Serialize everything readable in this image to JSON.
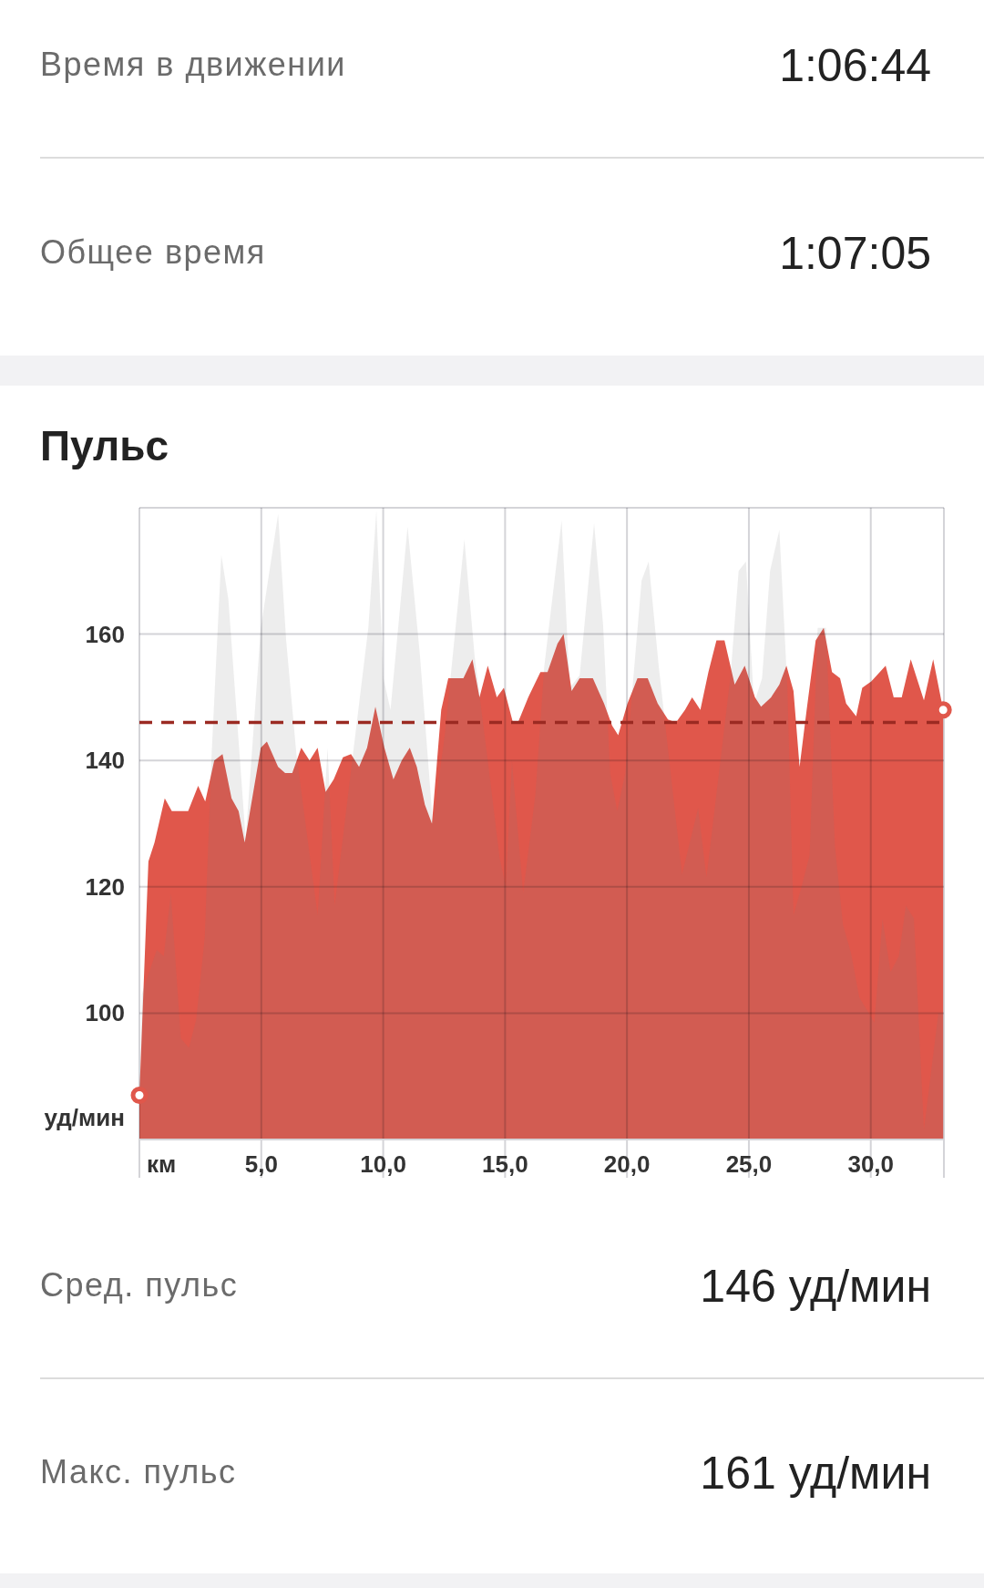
{
  "chart_data": {
    "type": "area",
    "title": "Пульс",
    "xlim": [
      0,
      33
    ],
    "ylim": [
      80,
      180
    ],
    "xlabel": "км",
    "ylabel": "уд/мин",
    "xticks": [
      {
        "value": 0,
        "label": null
      },
      {
        "value": 5,
        "label": "5,0"
      },
      {
        "value": 10,
        "label": "10,0"
      },
      {
        "value": 15,
        "label": "15,0"
      },
      {
        "value": 20,
        "label": "20,0"
      },
      {
        "value": 25,
        "label": "25,0"
      },
      {
        "value": 30,
        "label": "30,0"
      }
    ],
    "yticks": [
      {
        "value": 80,
        "label": null
      },
      100,
      120,
      140,
      160,
      {
        "value": 180,
        "label": null
      }
    ],
    "grid": true,
    "marker": "none",
    "series": [
      {
        "color": "#e0574b",
        "x": [
          0,
          0.37,
          0.62,
          1.04,
          1.33,
          2.0,
          2.41,
          2.7,
          3.07,
          3.41,
          3.78,
          4.07,
          4.32,
          4.98,
          5.23,
          5.69,
          5.98,
          6.27,
          6.64,
          6.98,
          7.31,
          7.64,
          7.97,
          8.35,
          8.68,
          9.01,
          9.34,
          9.68,
          10.05,
          10.42,
          10.76,
          11.09,
          11.38,
          11.71,
          12.0,
          12.38,
          12.67,
          13.04,
          13.29,
          13.66,
          13.95,
          14.29,
          14.66,
          14.95,
          15.32,
          15.53,
          15.95,
          16.45,
          16.74,
          17.15,
          17.4,
          17.73,
          18.06,
          18.6,
          19.06,
          19.39,
          19.64,
          20.02,
          20.43,
          20.85,
          21.26,
          21.68,
          22.01,
          22.38,
          22.67,
          23.01,
          23.34,
          23.67,
          24.0,
          24.42,
          24.83,
          25.25,
          25.5,
          25.91,
          26.25,
          26.54,
          26.83,
          27.08,
          27.37,
          27.74,
          28.07,
          28.41,
          28.74,
          28.99,
          29.4,
          29.65,
          30.02,
          30.61,
          30.94,
          31.27,
          31.64,
          32.18,
          32.56,
          32.97
        ],
        "values": [
          87,
          124,
          127,
          134,
          132,
          132,
          136,
          133.5,
          140,
          141,
          134,
          132,
          127,
          142,
          143,
          139,
          138,
          138,
          142,
          140,
          142,
          135,
          137,
          140.5,
          141,
          139,
          142,
          148.5,
          142,
          137,
          140,
          142,
          139,
          133,
          130,
          148,
          153,
          153,
          153,
          156,
          150,
          155,
          150,
          151.5,
          146,
          146,
          150,
          154,
          154,
          158.5,
          160,
          151,
          153,
          153,
          149,
          145.5,
          144,
          149,
          153,
          153,
          149,
          146.5,
          146,
          148,
          150,
          148,
          154,
          159,
          159,
          152,
          155,
          150,
          148.5,
          150,
          152,
          155,
          151,
          139,
          148,
          159,
          161,
          154,
          153,
          149,
          147,
          151.5,
          152.5,
          155,
          150,
          150,
          156,
          149.5,
          156,
          148
        ]
      },
      {
        "color": "#808080",
        "x": [
          0,
          0.1,
          0.71,
          1.0,
          1.29,
          1.7,
          2.03,
          2.33,
          2.68,
          2.95,
          3.36,
          3.65,
          4.36,
          4.98,
          5.69,
          6.02,
          6.44,
          7.31,
          7.72,
          8.01,
          8.76,
          9.39,
          9.72,
          10.01,
          10.3,
          11.0,
          11.5,
          12.04,
          12.54,
          13.33,
          13.75,
          14.29,
          14.78,
          15.03,
          15.28,
          15.74,
          16.24,
          16.61,
          17.32,
          17.65,
          18.06,
          18.65,
          19.02,
          19.31,
          19.6,
          19.93,
          20.6,
          20.89,
          21.3,
          21.88,
          22.26,
          22.92,
          23.26,
          24.25,
          24.58,
          24.88,
          25.21,
          25.54,
          25.87,
          26.25,
          26.58,
          26.83,
          27.16,
          27.49,
          27.82,
          28.16,
          28.53,
          28.86,
          29.19,
          29.53,
          30.15,
          30.48,
          30.81,
          31.15,
          31.44,
          31.77,
          32.18,
          32.77,
          32.97
        ],
        "values": [
          80,
          103,
          110,
          109,
          119,
          96,
          94.5,
          99,
          112,
          140,
          172.5,
          165.5,
          127.5,
          161,
          179,
          159,
          141,
          115.5,
          142,
          117,
          141,
          161,
          179.5,
          153,
          148,
          177,
          157,
          130,
          144.5,
          175,
          156.5,
          140,
          124.5,
          120,
          140,
          119,
          134.5,
          155,
          178,
          151.5,
          153.5,
          177.5,
          161.5,
          138,
          132,
          138,
          168.5,
          171.5,
          155,
          135,
          122,
          132.5,
          121.5,
          153.5,
          170,
          171.5,
          149,
          153,
          170,
          176.5,
          151.5,
          115.5,
          120,
          125,
          161,
          161,
          126.5,
          114,
          109.5,
          102.5,
          98.5,
          115,
          106.5,
          109,
          117,
          115,
          81.5,
          100,
          100
        ]
      }
    ],
    "ref_lines": [
      {
        "axis": "y",
        "value": 146,
        "color": "#9b2a22",
        "line_style": "dashed"
      }
    ],
    "annotations": [
      "Время в движении",
      "1:06:44",
      "Общее время",
      "1:07:05",
      "Сред. пульс",
      "146 уд/мин",
      "Макс. пульс",
      "161 уд/мин"
    ]
  }
}
